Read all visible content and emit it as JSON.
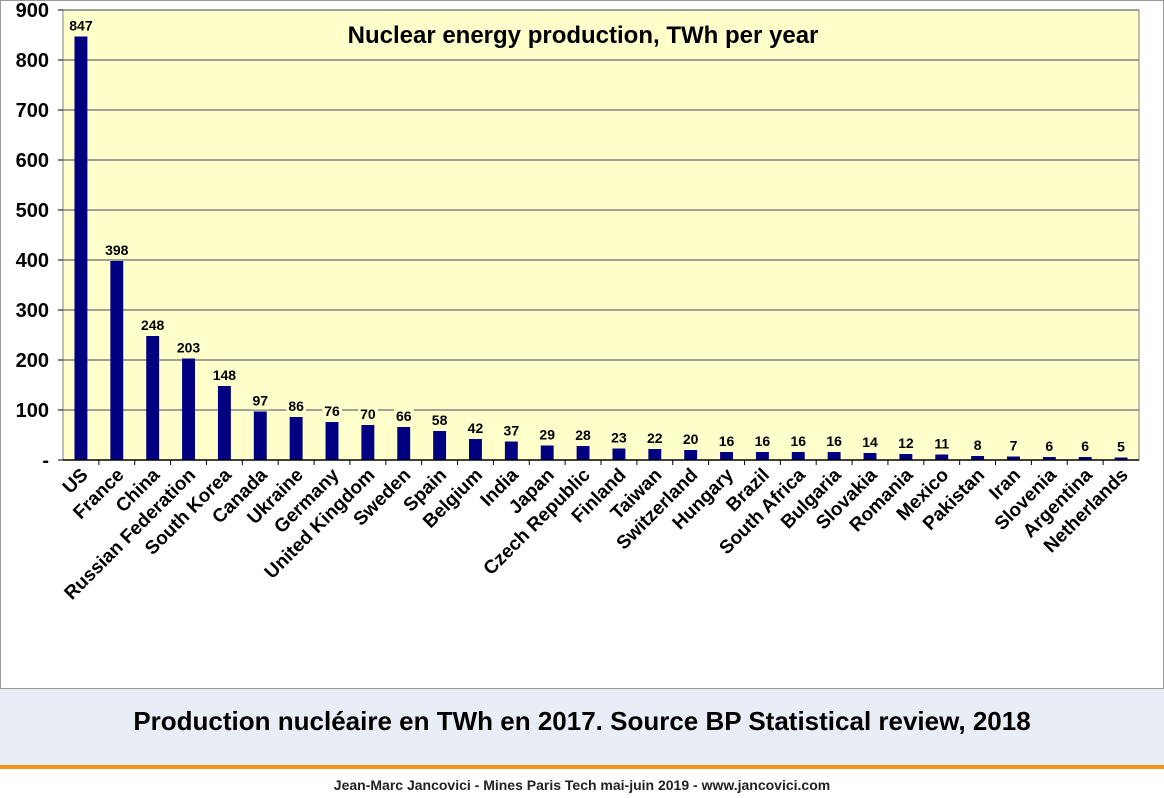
{
  "caption": "Production nucléaire en TWh en 2017. Source BP Statistical review, 2018",
  "footer": "Jean-Marc Jancovici - Mines Paris Tech mai-juin 2019 - www.jancovici.com",
  "colors": {
    "plot_bg": "#ffffcc",
    "bar": "#000080",
    "gridline": "#808080",
    "accent_rule": "#f7941d",
    "caption_bg": "#e9eef6"
  },
  "chart_data": {
    "type": "bar",
    "title": "Nuclear energy production, TWh per year",
    "xlabel": "",
    "ylabel": "",
    "ylim": [
      0,
      900
    ],
    "yticks": [
      0,
      100,
      200,
      300,
      400,
      500,
      600,
      700,
      800,
      900
    ],
    "ytick_labels": [
      "-",
      "100",
      "200",
      "300",
      "400",
      "500",
      "600",
      "700",
      "800",
      "900"
    ],
    "grid": true,
    "legend": "none",
    "categories": [
      "US",
      "France",
      "China",
      "Russian Federation",
      "South Korea",
      "Canada",
      "Ukraine",
      "Germany",
      "United Kingdom",
      "Sweden",
      "Spain",
      "Belgium",
      "India",
      "Japan",
      "Czech Republic",
      "Finland",
      "Taiwan",
      "Switzerland",
      "Hungary",
      "Brazil",
      "South Africa",
      "Bulgaria",
      "Slovakia",
      "Romania",
      "Mexico",
      "Pakistan",
      "Iran",
      "Slovenia",
      "Argentina",
      "Netherlands"
    ],
    "values": [
      847,
      398,
      248,
      203,
      148,
      97,
      86,
      76,
      70,
      66,
      58,
      42,
      37,
      29,
      28,
      23,
      22,
      20,
      16,
      16,
      16,
      16,
      14,
      12,
      11,
      8,
      7,
      6,
      6,
      5
    ]
  }
}
